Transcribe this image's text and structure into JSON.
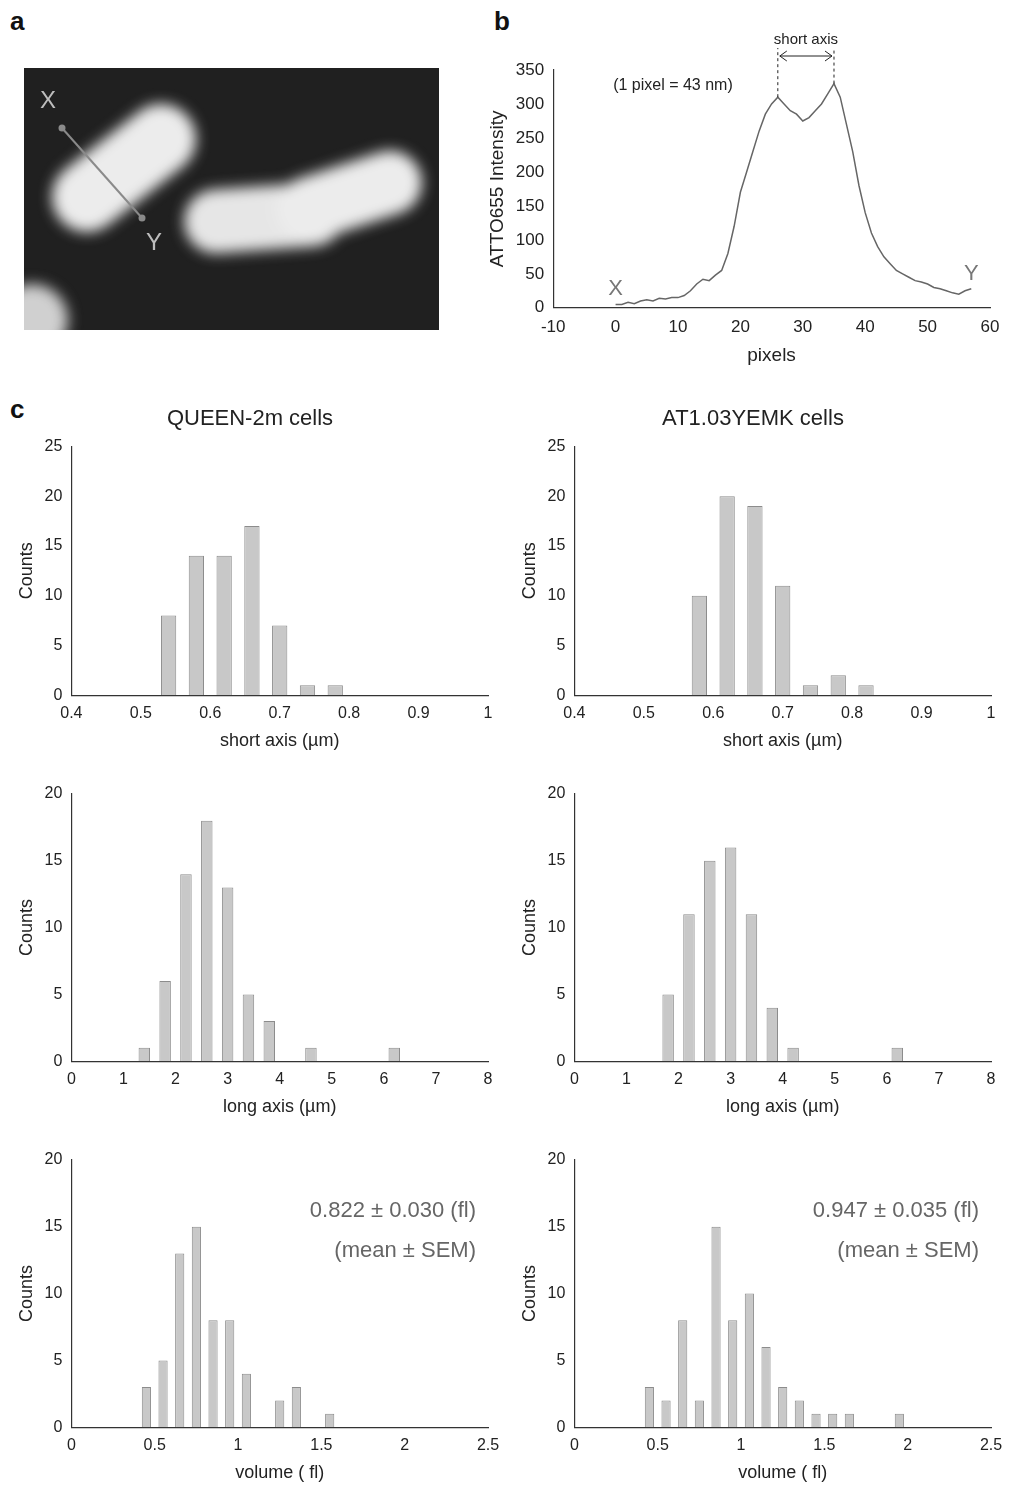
{
  "image": {
    "panel": "a",
    "labels": [
      "X",
      "Y"
    ]
  },
  "chart_data": [
    {
      "panel": "b",
      "type": "line",
      "x": [
        0,
        1,
        2,
        3,
        4,
        5,
        6,
        7,
        8,
        9,
        10,
        11,
        12,
        13,
        14,
        15,
        16,
        17,
        18,
        19,
        20,
        21,
        22,
        23,
        24,
        25,
        26,
        27,
        28,
        29,
        30,
        31,
        32,
        33,
        34,
        35,
        36,
        37,
        38,
        39,
        40,
        41,
        42,
        43,
        44,
        45,
        46,
        47,
        48,
        49,
        50,
        51,
        52,
        53,
        54,
        55,
        56,
        57
      ],
      "values": [
        5,
        5,
        8,
        6,
        10,
        12,
        10,
        14,
        13,
        15,
        15,
        18,
        25,
        35,
        42,
        40,
        48,
        55,
        80,
        120,
        170,
        200,
        230,
        260,
        285,
        300,
        310,
        300,
        290,
        285,
        275,
        280,
        290,
        300,
        315,
        330,
        310,
        270,
        230,
        180,
        140,
        110,
        90,
        75,
        65,
        55,
        50,
        45,
        40,
        38,
        35,
        30,
        28,
        25,
        22,
        20,
        25,
        28
      ],
      "color": "#666666",
      "xlabel": "pixels",
      "ylabel": "ATTO655 Intensity",
      "xlim": [
        -10,
        60
      ],
      "xticks": [
        -10,
        0,
        10,
        20,
        30,
        40,
        50,
        60
      ],
      "ylim": [
        0,
        350
      ],
      "yticks": [
        0,
        50,
        100,
        150,
        200,
        250,
        300,
        350
      ],
      "grid": false,
      "annotations": [
        "(1 pixel = 43 nm)"
      ],
      "short_axis": {
        "label": "short axis",
        "from": 26,
        "to": 35
      },
      "end_labels": [
        "X",
        "Y"
      ]
    },
    {
      "panel": "c",
      "type": "histogram",
      "title": "QUEEN-2m cells",
      "bins": [
        0.52,
        0.56,
        0.6,
        0.64,
        0.68,
        0.72,
        0.76,
        0.8
      ],
      "values": [
        8,
        14,
        14,
        17,
        7,
        1,
        1
      ],
      "color": "#c8c8c8",
      "xlabel": "short axis (µm)",
      "ylabel": "Counts",
      "xlim": [
        0.4,
        1
      ],
      "xticks": [
        0.4,
        0.5,
        0.6,
        0.7,
        0.8,
        0.9,
        1
      ],
      "ylim": [
        0,
        25
      ],
      "yticks": [
        0,
        5,
        10,
        15,
        20,
        25
      ],
      "grid": false
    },
    {
      "type": "histogram",
      "title": "AT1.03YEMK cells",
      "bins": [
        0.56,
        0.6,
        0.64,
        0.68,
        0.72,
        0.76,
        0.8,
        0.84
      ],
      "values": [
        10,
        20,
        19,
        11,
        1,
        2,
        1
      ],
      "color": "#c8c8c8",
      "xlabel": "short axis (µm)",
      "ylabel": "Counts",
      "xlim": [
        0.4,
        1
      ],
      "xticks": [
        0.4,
        0.5,
        0.6,
        0.7,
        0.8,
        0.9,
        1
      ],
      "ylim": [
        0,
        25
      ],
      "yticks": [
        0,
        5,
        10,
        15,
        20,
        25
      ],
      "grid": false
    },
    {
      "type": "histogram",
      "bins": [
        1.2,
        1.6,
        2.0,
        2.4,
        2.8,
        3.2,
        3.6,
        4.0,
        4.4,
        4.8,
        5.2,
        5.6,
        6.0,
        6.4
      ],
      "values": [
        1,
        6,
        14,
        18,
        13,
        5,
        3,
        0,
        1,
        0,
        0,
        0,
        1
      ],
      "color": "#c8c8c8",
      "xlabel": "long axis (µm)",
      "ylabel": "Counts",
      "xlim": [
        0,
        8
      ],
      "xticks": [
        0,
        1,
        2,
        3,
        4,
        5,
        6,
        7,
        8
      ],
      "ylim": [
        0,
        20
      ],
      "yticks": [
        0,
        5,
        10,
        15,
        20
      ],
      "grid": false
    },
    {
      "type": "histogram",
      "bins": [
        1.6,
        2.0,
        2.4,
        2.8,
        3.2,
        3.6,
        4.0,
        4.4,
        4.8,
        5.2,
        5.6,
        6.0,
        6.4
      ],
      "values": [
        5,
        11,
        15,
        16,
        11,
        4,
        1,
        0,
        0,
        0,
        0,
        1
      ],
      "color": "#c8c8c8",
      "xlabel": "long axis (µm)",
      "ylabel": "Counts",
      "xlim": [
        0,
        8
      ],
      "xticks": [
        0,
        1,
        2,
        3,
        4,
        5,
        6,
        7,
        8
      ],
      "ylim": [
        0,
        20
      ],
      "yticks": [
        0,
        5,
        10,
        15,
        20
      ],
      "grid": false
    },
    {
      "type": "histogram",
      "bins": [
        0.4,
        0.5,
        0.6,
        0.7,
        0.8,
        0.9,
        1.0,
        1.1,
        1.2,
        1.3,
        1.4,
        1.5,
        1.6
      ],
      "values": [
        3,
        5,
        13,
        15,
        8,
        8,
        4,
        0,
        2,
        3,
        0,
        1
      ],
      "color": "#c8c8c8",
      "xlabel": "volume ( fl)",
      "ylabel": "Counts",
      "xlim": [
        0,
        2.5
      ],
      "xticks": [
        0,
        0.5,
        1,
        1.5,
        2,
        2.5
      ],
      "ylim": [
        0,
        20
      ],
      "yticks": [
        0,
        5,
        10,
        15,
        20
      ],
      "grid": false,
      "annotations": [
        "0.822 ± 0.030 (fl)",
        "(mean ± SEM)"
      ]
    },
    {
      "type": "histogram",
      "bins": [
        0.4,
        0.5,
        0.6,
        0.7,
        0.8,
        0.9,
        1.0,
        1.1,
        1.2,
        1.3,
        1.4,
        1.5,
        1.6,
        1.7,
        1.8,
        1.9,
        2.0
      ],
      "values": [
        3,
        2,
        8,
        2,
        15,
        8,
        10,
        6,
        3,
        2,
        1,
        1,
        1,
        0,
        0,
        1
      ],
      "color": "#c8c8c8",
      "xlabel": "volume ( fl)",
      "ylabel": "Counts",
      "xlim": [
        0,
        2.5
      ],
      "xticks": [
        0,
        0.5,
        1,
        1.5,
        2,
        2.5
      ],
      "ylim": [
        0,
        20
      ],
      "yticks": [
        0,
        5,
        10,
        15,
        20
      ],
      "grid": false,
      "annotations": [
        "0.947 ± 0.035 (fl)",
        "(mean ± SEM)"
      ]
    }
  ]
}
